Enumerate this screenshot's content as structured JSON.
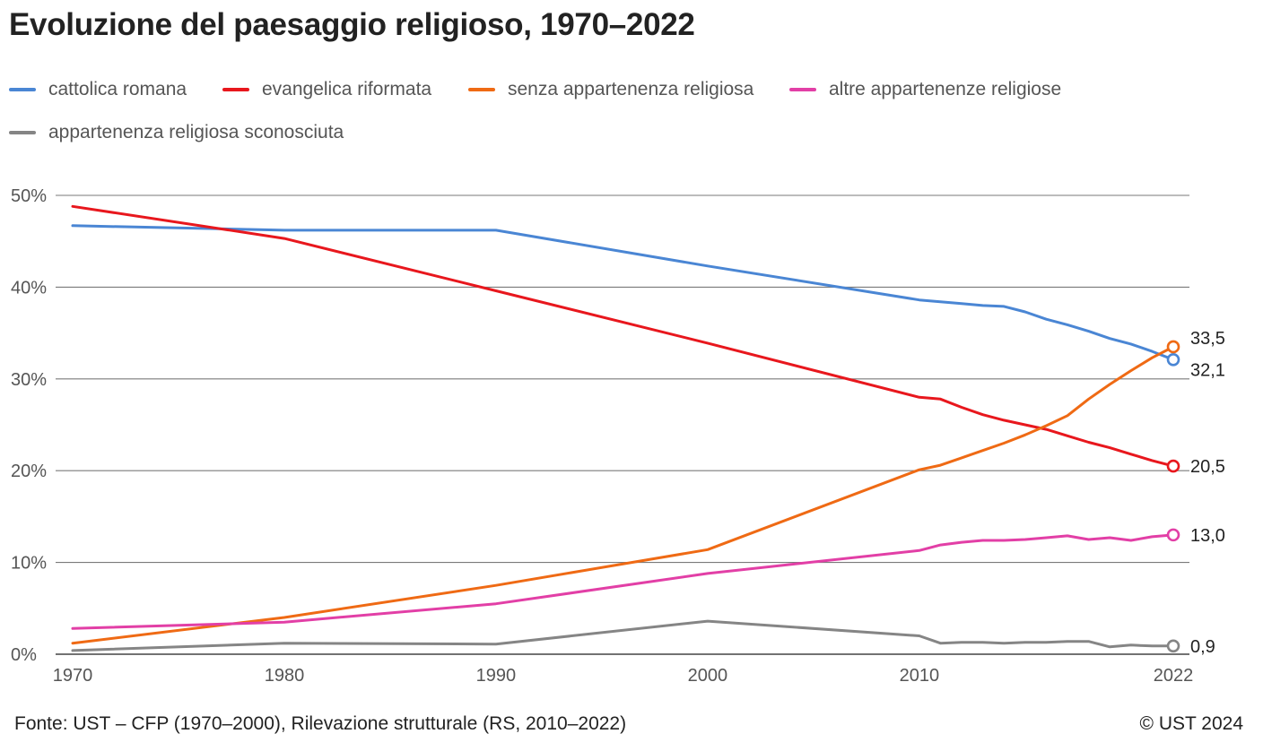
{
  "chart_data": {
    "type": "line",
    "title": "Evoluzione del paesaggio religioso, 1970–2022",
    "xlabel": "",
    "ylabel": "",
    "xlim": [
      1970,
      2022
    ],
    "ylim": [
      0,
      50
    ],
    "x_ticks": [
      1970,
      1980,
      1990,
      2000,
      2010,
      2022
    ],
    "y_ticks": [
      {
        "value": 0,
        "label": "0%"
      },
      {
        "value": 10,
        "label": "10%"
      },
      {
        "value": 20,
        "label": "20%"
      },
      {
        "value": 30,
        "label": "30%"
      },
      {
        "value": 40,
        "label": "40%"
      },
      {
        "value": 50,
        "label": "50%"
      }
    ],
    "grid": true,
    "legend_position": "top-left",
    "series": [
      {
        "name": "cattolica romana",
        "color": "#4a86d4",
        "end_label": "32,1",
        "points": [
          [
            1970,
            46.7
          ],
          [
            1980,
            46.2
          ],
          [
            1990,
            46.2
          ],
          [
            2000,
            42.3
          ],
          [
            2010,
            38.6
          ],
          [
            2011,
            38.4
          ],
          [
            2012,
            38.2
          ],
          [
            2013,
            38.0
          ],
          [
            2014,
            37.9
          ],
          [
            2015,
            37.3
          ],
          [
            2016,
            36.5
          ],
          [
            2017,
            35.9
          ],
          [
            2018,
            35.2
          ],
          [
            2019,
            34.4
          ],
          [
            2020,
            33.8
          ],
          [
            2021,
            33.0
          ],
          [
            2022,
            32.1
          ]
        ]
      },
      {
        "name": "evangelica riformata",
        "color": "#e8171d",
        "end_label": "20,5",
        "points": [
          [
            1970,
            48.8
          ],
          [
            1980,
            45.3
          ],
          [
            1990,
            39.6
          ],
          [
            2000,
            33.9
          ],
          [
            2010,
            28.0
          ],
          [
            2011,
            27.8
          ],
          [
            2012,
            26.9
          ],
          [
            2013,
            26.1
          ],
          [
            2014,
            25.5
          ],
          [
            2015,
            25.0
          ],
          [
            2016,
            24.5
          ],
          [
            2017,
            23.8
          ],
          [
            2018,
            23.1
          ],
          [
            2019,
            22.5
          ],
          [
            2020,
            21.8
          ],
          [
            2021,
            21.1
          ],
          [
            2022,
            20.5
          ]
        ]
      },
      {
        "name": "senza appartenenza religiosa",
        "color": "#ef6a14",
        "end_label": "33,5",
        "points": [
          [
            1970,
            1.2
          ],
          [
            1980,
            4.0
          ],
          [
            1990,
            7.5
          ],
          [
            2000,
            11.4
          ],
          [
            2010,
            20.1
          ],
          [
            2011,
            20.6
          ],
          [
            2012,
            21.4
          ],
          [
            2013,
            22.2
          ],
          [
            2014,
            23.0
          ],
          [
            2015,
            23.9
          ],
          [
            2016,
            24.9
          ],
          [
            2017,
            26.0
          ],
          [
            2018,
            27.8
          ],
          [
            2019,
            29.4
          ],
          [
            2020,
            30.9
          ],
          [
            2021,
            32.3
          ],
          [
            2022,
            33.5
          ]
        ]
      },
      {
        "name": "altre appartenenze religiose",
        "color": "#e23fa6",
        "end_label": "13,0",
        "points": [
          [
            1970,
            2.8
          ],
          [
            1980,
            3.5
          ],
          [
            1990,
            5.5
          ],
          [
            2000,
            8.8
          ],
          [
            2010,
            11.3
          ],
          [
            2011,
            11.9
          ],
          [
            2012,
            12.2
          ],
          [
            2013,
            12.4
          ],
          [
            2014,
            12.4
          ],
          [
            2015,
            12.5
          ],
          [
            2016,
            12.7
          ],
          [
            2017,
            12.9
          ],
          [
            2018,
            12.5
          ],
          [
            2019,
            12.7
          ],
          [
            2020,
            12.4
          ],
          [
            2021,
            12.8
          ],
          [
            2022,
            13.0
          ]
        ]
      },
      {
        "name": "appartenenza religiosa sconosciuta",
        "color": "#858585",
        "end_label": "0,9",
        "points": [
          [
            1970,
            0.4
          ],
          [
            1980,
            1.2
          ],
          [
            1990,
            1.1
          ],
          [
            2000,
            3.6
          ],
          [
            2010,
            2.0
          ],
          [
            2011,
            1.2
          ],
          [
            2012,
            1.3
          ],
          [
            2013,
            1.3
          ],
          [
            2014,
            1.2
          ],
          [
            2015,
            1.3
          ],
          [
            2016,
            1.3
          ],
          [
            2017,
            1.4
          ],
          [
            2018,
            1.4
          ],
          [
            2019,
            0.8
          ],
          [
            2020,
            1.0
          ],
          [
            2021,
            0.9
          ],
          [
            2022,
            0.9
          ]
        ]
      }
    ]
  },
  "footer": {
    "source": "Fonte: UST – CFP (1970–2000), Rilevazione strutturale (RS, 2010–2022)",
    "copyright": "© UST 2024"
  }
}
